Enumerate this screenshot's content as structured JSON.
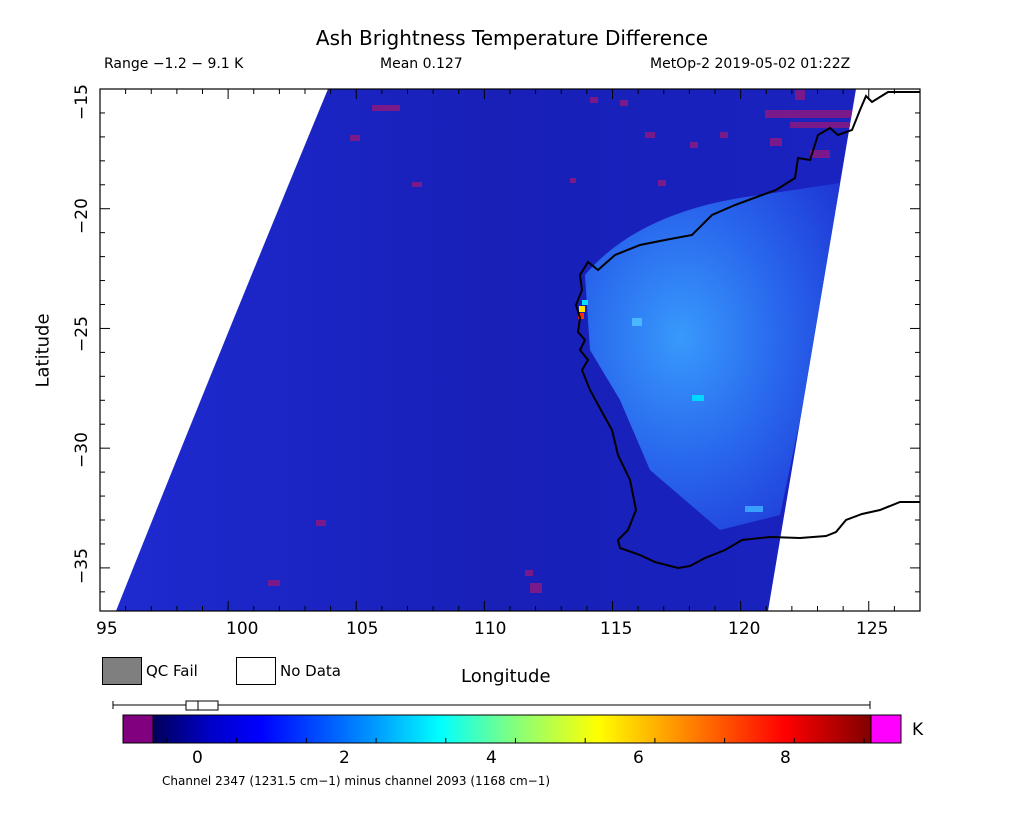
{
  "title": "Ash Brightness Temperature Difference",
  "header": {
    "range": "Range −1.2 − 9.1 K",
    "mean": "Mean 0.127",
    "source": "MetOp-2 2019-05-02 01:22Z"
  },
  "map": {
    "lon_range": [
      95,
      127
    ],
    "lat_range": [
      -36.8,
      -15
    ],
    "x_ticks": [
      "95",
      "100",
      "105",
      "110",
      "115",
      "120",
      "125"
    ],
    "y_ticks": [
      "−15",
      "−20",
      "−25",
      "−30",
      "−35"
    ],
    "xlabel": "Longitude",
    "ylabel": "Latitude",
    "colors": {
      "background_field": "#1a24c8",
      "elevated_field": "#2a7af0",
      "qc_fail": "#7f7f7f",
      "no_data": "#ffffff",
      "coastline": "#000000"
    }
  },
  "legend": {
    "qc_fail": "QC Fail",
    "no_data": "No Data"
  },
  "colorbar": {
    "min": -1.2,
    "max": 9.1,
    "unit": "K",
    "ticks": [
      "0",
      "2",
      "4",
      "6",
      "8"
    ],
    "caption": "Channel 2347 (1231.5 cm−1) minus channel 2093 (1168 cm−1)",
    "colors": [
      "#800080",
      "#00006e",
      "#0000ff",
      "#00c8ff",
      "#00ffb4",
      "#b4ff00",
      "#ffff00",
      "#ff8000",
      "#ff0000",
      "#800000",
      "#ff00ff"
    ]
  }
}
